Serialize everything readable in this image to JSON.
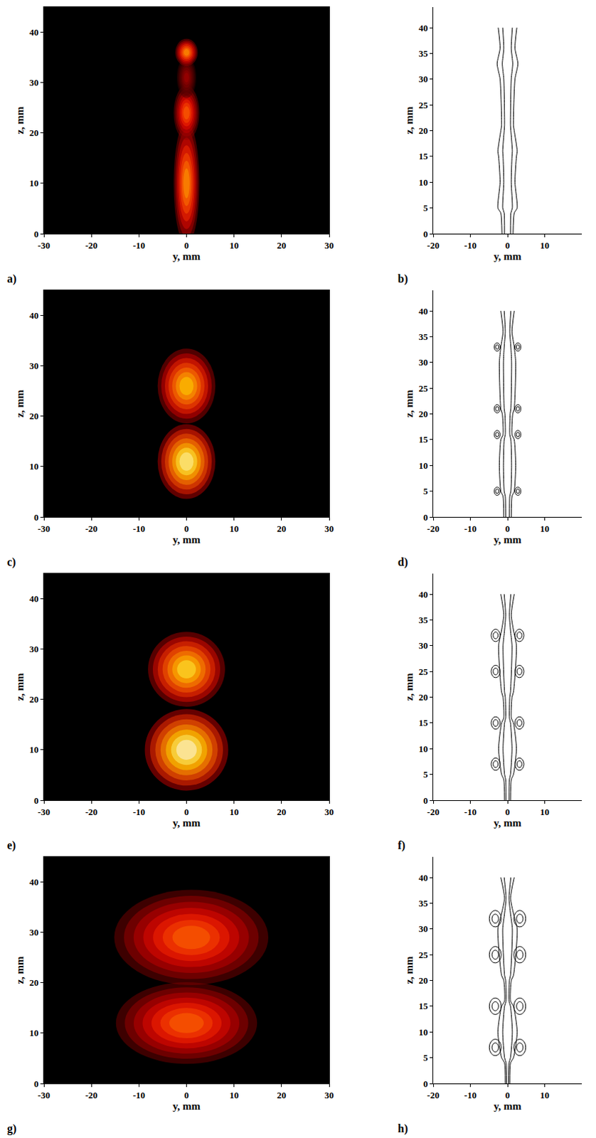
{
  "chart_data": [
    {
      "type": "image",
      "label": "a)",
      "xlabel": "y, mm",
      "ylabel": "z, mm",
      "xlim": [
        -30,
        30
      ],
      "xticks": [
        -30,
        -20,
        -10,
        0,
        10,
        20,
        30
      ],
      "ylim": [
        0,
        45
      ],
      "yticks": [
        0,
        10,
        20,
        30,
        40
      ],
      "blobs": [
        {
          "y": 0,
          "z": 10,
          "width": 4,
          "height": 18,
          "intensity": 0.7
        },
        {
          "y": 0,
          "z": 24,
          "width": 4,
          "height": 8,
          "intensity": 0.6
        },
        {
          "y": 0,
          "z": 31,
          "width": 3,
          "height": 6,
          "intensity": 0.3
        },
        {
          "y": 0,
          "z": 36,
          "width": 3.5,
          "height": 4,
          "intensity": 0.7
        }
      ]
    },
    {
      "type": "streamlines",
      "label": "b)",
      "xlabel": "y, mm",
      "ylabel": "z, mm",
      "color": "#000000",
      "xlim": [
        -20,
        20
      ],
      "xticks": [
        -20,
        -10,
        0,
        10
      ],
      "ylim": [
        0,
        44
      ],
      "yticks": [
        0,
        5,
        10,
        15,
        20,
        25,
        30,
        35,
        40
      ],
      "streamlines": {
        "z": [
          0,
          4,
          5,
          10,
          15,
          16,
          20,
          21,
          30,
          33,
          36,
          40
        ],
        "y": [
          [
            -1.5,
            -1.8,
            -2.6,
            -2.0,
            -2.4,
            -2.6,
            -1.8,
            -1.6,
            -2.0,
            -2.8,
            -2.0,
            -2.5
          ],
          [
            -0.8,
            -0.9,
            -1.3,
            -1.0,
            -1.2,
            -1.3,
            -0.9,
            -0.8,
            -1.0,
            -1.4,
            -1.0,
            -1.3
          ],
          [
            0.8,
            0.9,
            1.3,
            1.0,
            1.2,
            1.3,
            0.9,
            0.8,
            1.0,
            1.4,
            1.0,
            1.3
          ],
          [
            1.5,
            1.8,
            2.6,
            2.0,
            2.4,
            2.6,
            1.8,
            1.6,
            2.0,
            2.8,
            2.0,
            2.5
          ]
        ]
      },
      "vortices": []
    },
    {
      "type": "image",
      "label": "c)",
      "xlabel": "y, mm",
      "ylabel": "z, mm",
      "xlim": [
        -30,
        30
      ],
      "xticks": [
        -30,
        -20,
        -10,
        0,
        10,
        20,
        30
      ],
      "ylim": [
        0,
        45
      ],
      "yticks": [
        0,
        10,
        20,
        30,
        40
      ],
      "blobs": [
        {
          "y": 0,
          "z": 26,
          "width": 9,
          "height": 11,
          "intensity": 0.8
        },
        {
          "y": 0,
          "z": 11,
          "width": 9,
          "height": 11,
          "intensity": 0.95
        }
      ]
    },
    {
      "type": "streamlines",
      "label": "d)",
      "xlabel": "y, mm",
      "ylabel": "z, mm",
      "color": "#000000",
      "xlim": [
        -20,
        20
      ],
      "xticks": [
        -20,
        -10,
        0,
        10
      ],
      "ylim": [
        0,
        44
      ],
      "yticks": [
        0,
        5,
        10,
        15,
        20,
        25,
        30,
        35,
        40
      ],
      "streamlines": {
        "z": [
          0,
          4,
          5,
          10,
          15,
          16,
          20,
          21,
          30,
          33,
          36,
          40
        ],
        "y": [
          [
            -1.0,
            -1.2,
            -1.8,
            -2.2,
            -1.8,
            -1.2,
            -1.4,
            -1.8,
            -2.2,
            -1.8,
            -1.2,
            -1.8
          ],
          [
            -0.5,
            -0.6,
            -0.9,
            -1.1,
            -0.9,
            -0.6,
            -0.7,
            -0.9,
            -1.1,
            -0.9,
            -0.6,
            -0.9
          ],
          [
            0.5,
            0.6,
            0.9,
            1.1,
            0.9,
            0.6,
            0.7,
            0.9,
            1.1,
            0.9,
            0.6,
            0.9
          ],
          [
            1.0,
            1.2,
            1.8,
            2.2,
            1.8,
            1.2,
            1.4,
            1.8,
            2.2,
            1.8,
            1.2,
            1.8
          ]
        ]
      },
      "vortices": [
        {
          "y": -2.8,
          "z": 5,
          "radius": 0.8
        },
        {
          "y": 2.8,
          "z": 5,
          "radius": 0.8
        },
        {
          "y": -2.8,
          "z": 16,
          "radius": 0.8
        },
        {
          "y": 2.8,
          "z": 16,
          "radius": 0.8
        },
        {
          "y": -2.8,
          "z": 21,
          "radius": 0.8
        },
        {
          "y": 2.8,
          "z": 21,
          "radius": 0.8
        },
        {
          "y": -2.8,
          "z": 33,
          "radius": 0.8
        },
        {
          "y": 2.8,
          "z": 33,
          "radius": 0.8
        }
      ]
    },
    {
      "type": "image",
      "label": "e)",
      "xlabel": "y, mm",
      "ylabel": "z, mm",
      "xlim": [
        -30,
        30
      ],
      "xticks": [
        -30,
        -20,
        -10,
        0,
        10,
        20,
        30
      ],
      "ylim": [
        0,
        45
      ],
      "yticks": [
        0,
        10,
        20,
        30,
        40
      ],
      "blobs": [
        {
          "y": 0,
          "z": 26,
          "width": 12,
          "height": 11,
          "intensity": 0.85
        },
        {
          "y": 0,
          "z": 10,
          "width": 13,
          "height": 12,
          "intensity": 1.0
        }
      ]
    },
    {
      "type": "streamlines",
      "label": "f)",
      "xlabel": "y, mm",
      "ylabel": "z, mm",
      "color": "#000000",
      "xlim": [
        -20,
        20
      ],
      "xticks": [
        -20,
        -10,
        0,
        10
      ],
      "ylim": [
        0,
        44
      ],
      "yticks": [
        0,
        5,
        10,
        15,
        20,
        25,
        30,
        35,
        40
      ],
      "streamlines": {
        "z": [
          0,
          4,
          5,
          10,
          15,
          16,
          20,
          21,
          30,
          33,
          36,
          40
        ],
        "y": [
          [
            -0.8,
            -1.0,
            -1.6,
            -2.4,
            -1.6,
            -1.0,
            -1.2,
            -1.6,
            -2.4,
            -1.6,
            -1.0,
            -1.8
          ],
          [
            -0.4,
            -0.5,
            -0.8,
            -1.2,
            -0.8,
            -0.5,
            -0.6,
            -0.8,
            -1.2,
            -0.8,
            -0.5,
            -0.9
          ],
          [
            0.4,
            0.5,
            0.8,
            1.2,
            0.8,
            0.5,
            0.6,
            0.8,
            1.2,
            0.8,
            0.5,
            0.9
          ],
          [
            0.8,
            1.0,
            1.6,
            2.4,
            1.6,
            1.0,
            1.2,
            1.6,
            2.4,
            1.6,
            1.0,
            1.8
          ]
        ]
      },
      "vortices": [
        {
          "y": -3.2,
          "z": 7,
          "radius": 1.2
        },
        {
          "y": 3.2,
          "z": 7,
          "radius": 1.2
        },
        {
          "y": -3.2,
          "z": 15,
          "radius": 1.2
        },
        {
          "y": 3.2,
          "z": 15,
          "radius": 1.2
        },
        {
          "y": -3.2,
          "z": 25,
          "radius": 1.2
        },
        {
          "y": 3.2,
          "z": 25,
          "radius": 1.2
        },
        {
          "y": -3.2,
          "z": 32,
          "radius": 1.2
        },
        {
          "y": 3.2,
          "z": 32,
          "radius": 1.2
        }
      ]
    },
    {
      "type": "image",
      "label": "g)",
      "xlabel": "y, mm",
      "ylabel": "z, mm",
      "xlim": [
        -30,
        30
      ],
      "xticks": [
        -30,
        -20,
        -10,
        0,
        10,
        20,
        30
      ],
      "ylim": [
        0,
        45
      ],
      "yticks": [
        0,
        10,
        20,
        30,
        40
      ],
      "blobs": [
        {
          "y": 1,
          "z": 29,
          "width": 24,
          "height": 14,
          "intensity": 0.6
        },
        {
          "y": 0,
          "z": 12,
          "width": 22,
          "height": 12,
          "intensity": 0.6
        }
      ]
    },
    {
      "type": "streamlines",
      "label": "h)",
      "xlabel": "y, mm",
      "ylabel": "z, mm",
      "color": "#000000",
      "xlim": [
        -20,
        20
      ],
      "xticks": [
        -20,
        -10,
        0,
        10
      ],
      "ylim": [
        0,
        44
      ],
      "yticks": [
        0,
        5,
        10,
        15,
        20,
        25,
        30,
        35,
        40
      ],
      "streamlines": {
        "z": [
          0,
          4,
          5,
          10,
          15,
          16,
          20,
          21,
          30,
          33,
          36,
          40
        ],
        "y": [
          [
            -0.6,
            -0.8,
            -1.6,
            -2.6,
            -1.6,
            -0.8,
            -1.0,
            -1.6,
            -2.6,
            -1.6,
            -0.8,
            -1.8
          ],
          [
            -0.3,
            -0.4,
            -0.8,
            -1.3,
            -0.8,
            -0.4,
            -0.5,
            -0.8,
            -1.3,
            -0.8,
            -0.4,
            -0.9
          ],
          [
            0.3,
            0.4,
            0.8,
            1.3,
            0.8,
            0.4,
            0.5,
            0.8,
            1.3,
            0.8,
            0.4,
            0.9
          ],
          [
            0.6,
            0.8,
            1.6,
            2.6,
            1.6,
            0.8,
            1.0,
            1.6,
            2.6,
            1.6,
            0.8,
            1.8
          ]
        ]
      },
      "vortices": [
        {
          "y": -3.3,
          "z": 7,
          "radius": 1.6
        },
        {
          "y": 3.3,
          "z": 7,
          "radius": 1.6
        },
        {
          "y": -3.3,
          "z": 15,
          "radius": 1.6
        },
        {
          "y": 3.3,
          "z": 15,
          "radius": 1.6
        },
        {
          "y": -3.3,
          "z": 25,
          "radius": 1.6
        },
        {
          "y": 3.3,
          "z": 25,
          "radius": 1.6
        },
        {
          "y": -3.3,
          "z": 32,
          "radius": 1.6
        },
        {
          "y": 3.3,
          "z": 32,
          "radius": 1.6
        }
      ]
    }
  ]
}
